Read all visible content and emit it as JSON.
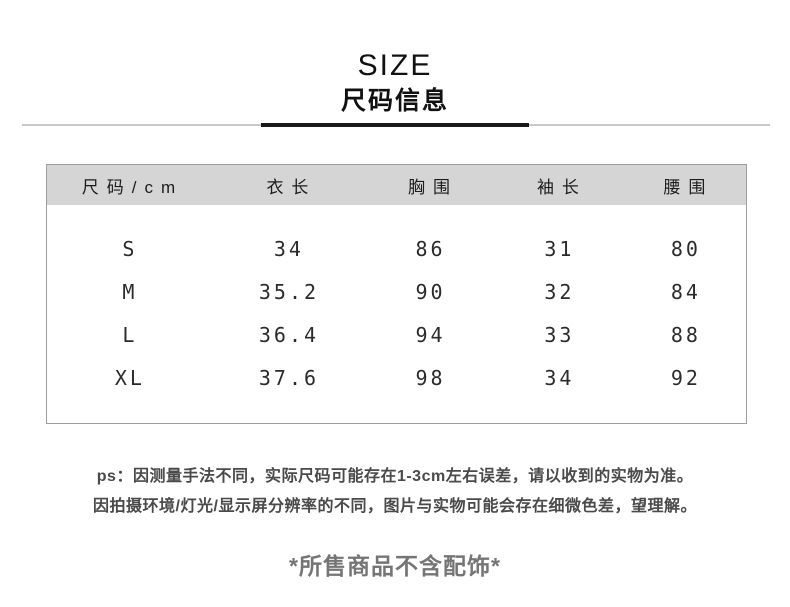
{
  "title": {
    "en": "SIZE",
    "zh": "尺码信息"
  },
  "size_table": {
    "unit_header": "尺码/cm",
    "columns": [
      "衣长",
      "胸围",
      "袖长",
      "腰围"
    ],
    "rows": [
      {
        "size": "S",
        "values": [
          "34",
          "86",
          "31",
          "80"
        ]
      },
      {
        "size": "M",
        "values": [
          "35.2",
          "90",
          "32",
          "84"
        ]
      },
      {
        "size": "L",
        "values": [
          "36.4",
          "94",
          "33",
          "88"
        ]
      },
      {
        "size": "XL",
        "values": [
          "37.6",
          "98",
          "34",
          "92"
        ]
      }
    ]
  },
  "notes": {
    "line1": "ps：因测量手法不同，实际尺码可能存在1-3cm左右误差，请以收到的实物为准。",
    "line2": "因拍摄环境/灯光/显示屏分辨率的不同，图片与实物可能会存在细微色差，望理解。"
  },
  "footer": {
    "text": "*所售商品不含配饰*"
  },
  "colors": {
    "table_header_bg": "#d5d5d5",
    "table_border": "#9e9e9e",
    "divider_accent": "#1a1a1a",
    "divider_line": "#c9c9c9",
    "note_text": "#4a4a4a",
    "footer_text": "#757575",
    "title_text": "#111111"
  }
}
